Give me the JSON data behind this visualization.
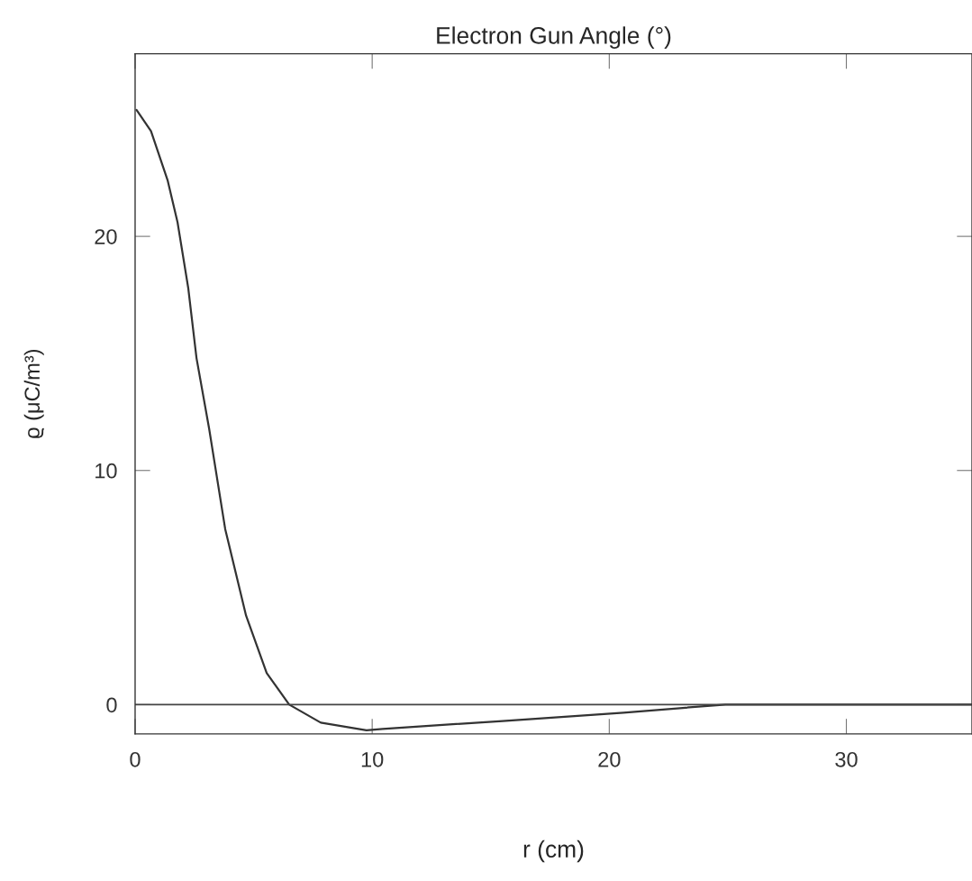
{
  "chart_data": {
    "type": "line",
    "title": "Electron Gun Angle (°)",
    "xlabel": "r (cm)",
    "ylabel": "ϱ (μC/m³)",
    "x": [
      0.06,
      0.67,
      1.37,
      1.79,
      2.24,
      2.59,
      3.12,
      3.8,
      4.68,
      5.55,
      6.5,
      7.83,
      9.76,
      10.44,
      15.5,
      20.6,
      23.1,
      24.9,
      30,
      35.3
    ],
    "series": [
      {
        "color": "#333333",
        "values": [
          25.4,
          24.5,
          22.4,
          20.6,
          17.8,
          14.8,
          11.8,
          7.5,
          3.8,
          1.35,
          0.0,
          -0.77,
          -1.1,
          -1.04,
          -0.7,
          -0.35,
          -0.14,
          0.0,
          0.0,
          0.0
        ]
      }
    ],
    "xlim": [
      0,
      35.3
    ],
    "ylim": [
      -1.25,
      27.8
    ],
    "xticks": [
      0,
      10,
      20,
      30
    ],
    "yticks": [
      0,
      10,
      20
    ],
    "ref_lines": [
      {
        "axis": "y",
        "value": 0,
        "color": "#444444"
      }
    ],
    "grid": false,
    "marker": "none",
    "line_style": "solid"
  }
}
